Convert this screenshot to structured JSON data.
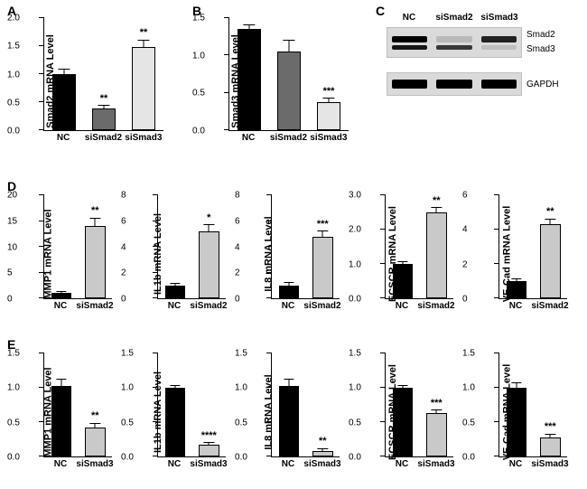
{
  "colors": {
    "black": "#000000",
    "darkgray": "#6b6b6b",
    "lightgray": "#d9d9d9",
    "axis": "#000000"
  },
  "panelA": {
    "label": "A",
    "ylabel": "Smad2 mRNA Level",
    "ymax": 2.0,
    "ytick_step": 0.5,
    "categories": [
      "NC",
      "siSmad2",
      "siSmad3"
    ],
    "values": [
      1.0,
      0.38,
      1.48
    ],
    "errors": [
      0.08,
      0.05,
      0.12
    ],
    "bar_colors": [
      "#000000",
      "#6b6b6b",
      "#e5e5e5"
    ],
    "sig": [
      "",
      "**",
      "**"
    ]
  },
  "panelB": {
    "label": "B",
    "ylabel": "Smad3 mRNA Level",
    "ymax": 1.5,
    "ytick_step": 0.5,
    "categories": [
      "NC",
      "siSmad2",
      "siSmad3"
    ],
    "values": [
      1.35,
      1.05,
      0.38
    ],
    "errors": [
      0.05,
      0.15,
      0.04
    ],
    "bar_colors": [
      "#000000",
      "#6b6b6b",
      "#e5e5e5"
    ],
    "sig": [
      "",
      "",
      "***"
    ]
  },
  "panelC": {
    "label": "C",
    "lanes": [
      "NC",
      "siSmad2",
      "siSmad3"
    ],
    "rows": [
      {
        "labels": [
          "Smad2",
          "Smad3"
        ],
        "double": true,
        "top": {
          "intensity": [
            1.0,
            0.15,
            0.85
          ],
          "height": 7
        },
        "bot": {
          "intensity": [
            0.9,
            0.75,
            0.12
          ],
          "height": 5
        }
      },
      {
        "labels": [
          "GAPDH"
        ],
        "double": false,
        "band": {
          "intensity": [
            1.0,
            1.0,
            1.0
          ],
          "height": 10
        }
      }
    ]
  },
  "panelD": {
    "label": "D",
    "common_categories": [
      "NC",
      "siSmad2"
    ],
    "common_colors": [
      "#000000",
      "#c9c9c9"
    ],
    "charts": [
      {
        "ylabel": "MMP1 mRNA Level",
        "ymax": 20,
        "ytick_step": 5,
        "values": [
          1.0,
          14.0
        ],
        "errors": [
          0.3,
          1.5
        ],
        "sig": [
          "",
          "**"
        ]
      },
      {
        "ylabel": "IL1b mRNA Level",
        "ymax": 8,
        "ytick_step": 2,
        "values": [
          1.0,
          5.2
        ],
        "errors": [
          0.15,
          0.5
        ],
        "sig": [
          "",
          "*"
        ]
      },
      {
        "ylabel": "IL8 mRNA Level",
        "ymax": 8,
        "ytick_step": 2,
        "values": [
          1.0,
          4.8
        ],
        "errors": [
          0.2,
          0.4
        ],
        "sig": [
          "",
          "***"
        ]
      },
      {
        "ylabel": "ECSCR mRNA Level",
        "ymax": 3,
        "ytick_step": 1,
        "values": [
          1.0,
          2.5
        ],
        "errors": [
          0.06,
          0.12
        ],
        "sig": [
          "",
          "**"
        ]
      },
      {
        "ylabel": "VE-Cad mRNA Level",
        "ymax": 6,
        "ytick_step": 2,
        "values": [
          1.0,
          4.3
        ],
        "errors": [
          0.1,
          0.3
        ],
        "sig": [
          "",
          "**"
        ]
      }
    ]
  },
  "panelE": {
    "label": "E",
    "common_categories": [
      "NC",
      "siSmad3"
    ],
    "common_colors": [
      "#000000",
      "#c9c9c9"
    ],
    "charts": [
      {
        "ylabel": "MMP1 mRNA Level",
        "ymax": 1.5,
        "ytick_step": 0.5,
        "values": [
          1.02,
          0.42
        ],
        "errors": [
          0.1,
          0.06
        ],
        "sig": [
          "",
          "**"
        ]
      },
      {
        "ylabel": "IL1b mRNA Level",
        "ymax": 1.5,
        "ytick_step": 0.5,
        "values": [
          1.0,
          0.17
        ],
        "errors": [
          0.03,
          0.03
        ],
        "sig": [
          "",
          "****"
        ]
      },
      {
        "ylabel": "IL8 mRNA Level",
        "ymax": 1.5,
        "ytick_step": 0.5,
        "values": [
          1.02,
          0.08
        ],
        "errors": [
          0.1,
          0.03
        ],
        "sig": [
          "",
          "**"
        ]
      },
      {
        "ylabel": "ECSCR mRNA Level",
        "ymax": 1.5,
        "ytick_step": 0.5,
        "values": [
          1.0,
          0.63
        ],
        "errors": [
          0.03,
          0.04
        ],
        "sig": [
          "",
          "***"
        ]
      },
      {
        "ylabel": "VE-Cad mRNA Level",
        "ymax": 1.5,
        "ytick_step": 0.5,
        "values": [
          1.0,
          0.28
        ],
        "errors": [
          0.06,
          0.04
        ],
        "sig": [
          "",
          "***"
        ]
      }
    ]
  }
}
